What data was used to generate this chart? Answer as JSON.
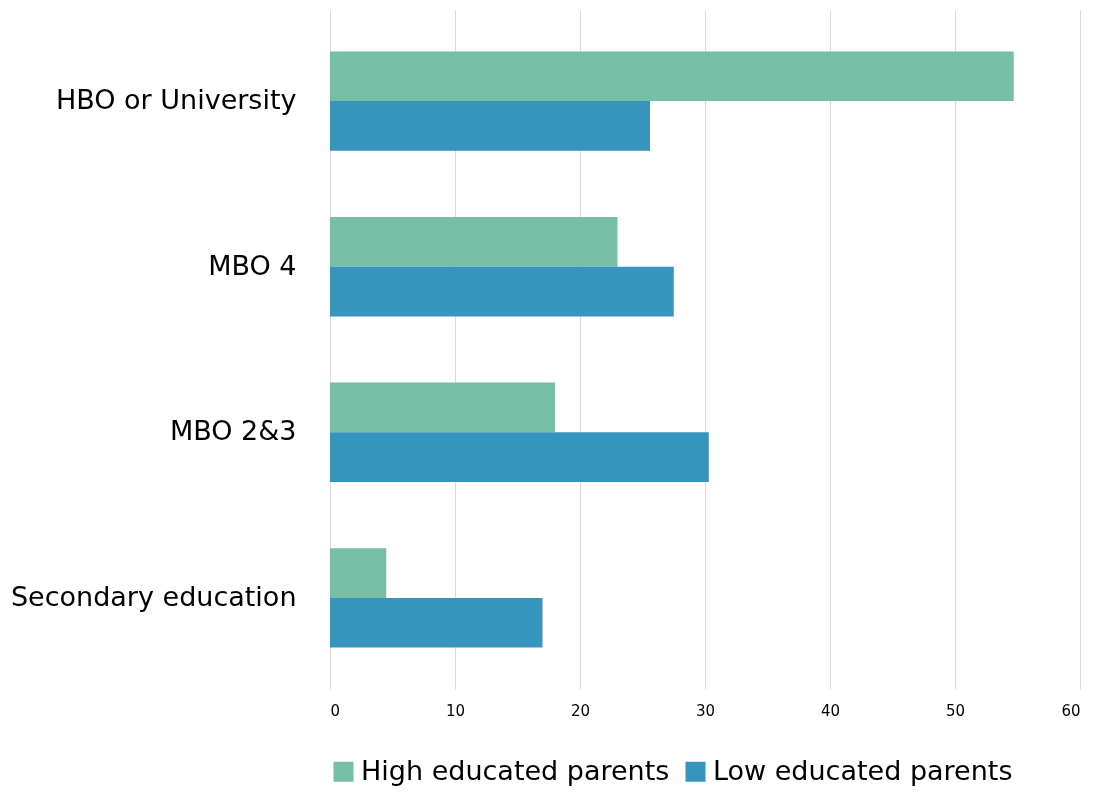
{
  "chart_data": {
    "type": "bar",
    "orientation": "horizontal",
    "categories": [
      "HBO or University",
      "MBO 4",
      "MBO 2&3",
      "Secondary education"
    ],
    "series": [
      {
        "name": "High educated parents",
        "color": "#77bea6",
        "values": [
          54.7,
          23.0,
          18.0,
          4.5
        ]
      },
      {
        "name": "Low educated parents",
        "color": "#3795bd",
        "values": [
          25.6,
          27.5,
          30.3,
          17.0
        ]
      }
    ],
    "xlim": [
      0,
      60
    ],
    "xticks": [
      0,
      10,
      20,
      30,
      40,
      50,
      60
    ],
    "grid": "x",
    "legend": "bottom"
  }
}
